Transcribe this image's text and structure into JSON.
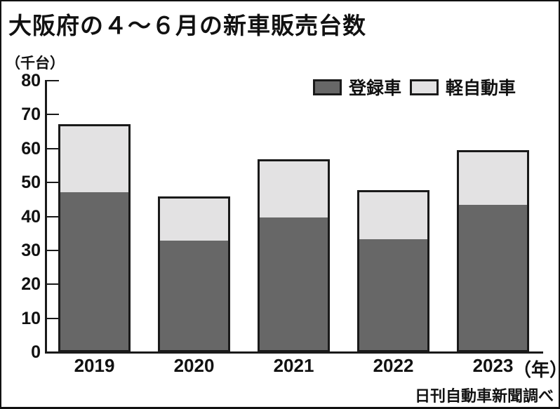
{
  "title": "大阪府の４～６月の新車販売台数",
  "unit_label": "（千台）",
  "x_axis_suffix": "（年）",
  "source": "日刊自動車新聞調べ",
  "legend": [
    {
      "label": "登録車",
      "color": "#676767"
    },
    {
      "label": "軽自動車",
      "color": "#e3e2e3"
    }
  ],
  "chart_data": {
    "type": "bar",
    "stacked": true,
    "title": "大阪府の４～６月の新車販売台数",
    "ylabel": "（千台）",
    "xlabel": "（年）",
    "categories": [
      "2019",
      "2020",
      "2021",
      "2022",
      "2023"
    ],
    "series": [
      {
        "name": "登録車",
        "color": "#676767",
        "values": [
          47.2,
          32.9,
          39.7,
          33.2,
          43.4
        ]
      },
      {
        "name": "軽自動車",
        "color": "#e3e2e3",
        "values": [
          19.9,
          12.9,
          17.1,
          14.6,
          16.1
        ]
      }
    ],
    "totals": [
      67.1,
      45.8,
      56.8,
      47.8,
      59.5
    ],
    "ylim": [
      0,
      80
    ],
    "yticks": [
      0,
      10,
      20,
      30,
      40,
      50,
      60,
      70,
      80
    ],
    "grid": false,
    "legend_position": "top-right"
  }
}
